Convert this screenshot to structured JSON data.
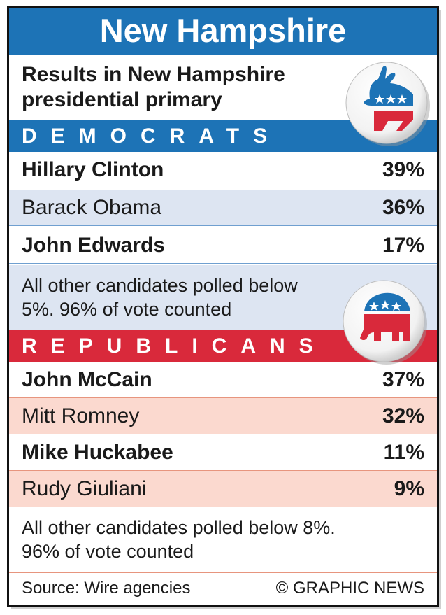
{
  "header": {
    "title": "New Hampshire"
  },
  "subtitle": "Results in New Hampshire presidential primary",
  "chart_data": {
    "type": "table",
    "title": "New Hampshire",
    "subtitle": "Results in New Hampshire presidential primary",
    "groups": [
      {
        "name": "DEMOCRATS",
        "rows": [
          {
            "candidate": "Hillary Clinton",
            "percent": "39%"
          },
          {
            "candidate": "Barack Obama",
            "percent": "36%"
          },
          {
            "candidate": "John Edwards",
            "percent": "17%"
          }
        ],
        "note": "All other candidates polled below 5%. 96% of vote counted"
      },
      {
        "name": "REPUBLICANS",
        "rows": [
          {
            "candidate": "John McCain",
            "percent": "37%"
          },
          {
            "candidate": "Mitt Romney",
            "percent": "32%"
          },
          {
            "candidate": "Mike Huckabee",
            "percent": "11%"
          },
          {
            "candidate": "Rudy Giuliani",
            "percent": "9%"
          }
        ],
        "note": "All other candidates polled below 8%. 96% of vote counted"
      }
    ]
  },
  "dem_note_lines": [
    "All other candidates polled below",
    "5%. 96% of vote counted"
  ],
  "rep_note_lines": [
    "All other candidates polled below 8%.",
    "96% of vote counted"
  ],
  "footer": {
    "source": "Source: Wire agencies",
    "credit": "© GRAPHIC NEWS"
  },
  "colors": {
    "democrat_blue": "#1d73b6",
    "republican_red": "#d9293b",
    "dem_row_tint": "#dde5f2",
    "rep_row_tint": "#fbd9cf"
  },
  "icons": {
    "democrat": "donkey-icon",
    "republican": "elephant-icon"
  }
}
